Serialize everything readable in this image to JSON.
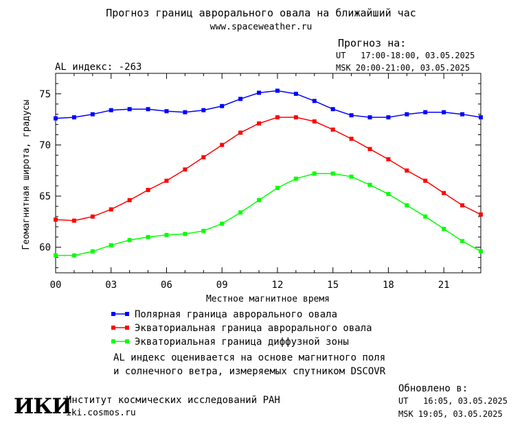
{
  "header": {
    "title": "Прогноз границ аврорального овала на ближайший час",
    "site": "www.spaceweather.ru",
    "forecast_label": "Прогноз на:",
    "forecast_ut": "UT   17:00-18:00, 03.05.2025",
    "forecast_msk": "MSK 20:00-21:00, 03.05.2025",
    "al_index": "AL индекс: -263"
  },
  "chart_data": {
    "type": "line",
    "xlabel": "Местное магнитное время",
    "ylabel": "Геомагнитная широта, градусы",
    "xlim": [
      0,
      23
    ],
    "ylim": [
      57.5,
      77
    ],
    "x_ticks": [
      "00",
      "03",
      "06",
      "09",
      "12",
      "15",
      "18",
      "21"
    ],
    "y_ticks": [
      "60",
      "65",
      "70",
      "75"
    ],
    "x": [
      0,
      1,
      2,
      3,
      4,
      5,
      6,
      7,
      8,
      9,
      10,
      11,
      12,
      13,
      14,
      15,
      16,
      17,
      18,
      19,
      20,
      21,
      22,
      23
    ],
    "series": [
      {
        "name": "Полярная граница аврорального овала",
        "color": "#0000ff",
        "values": [
          72.6,
          72.7,
          73.0,
          73.4,
          73.5,
          73.5,
          73.3,
          73.2,
          73.4,
          73.8,
          74.5,
          75.1,
          75.3,
          75.0,
          74.3,
          73.5,
          72.9,
          72.7,
          72.7,
          73.0,
          73.2,
          73.2,
          73.0,
          72.7
        ]
      },
      {
        "name": "Экваториальная граница аврорального овала",
        "color": "#ff0000",
        "values": [
          62.7,
          62.6,
          63.0,
          63.7,
          64.6,
          65.6,
          66.5,
          67.6,
          68.8,
          70.0,
          71.2,
          72.1,
          72.7,
          72.7,
          72.3,
          71.5,
          70.6,
          69.6,
          68.6,
          67.5,
          66.5,
          65.3,
          64.1,
          63.2
        ]
      },
      {
        "name": "Экваториальная граница диффузной зоны",
        "color": "#00ff00",
        "values": [
          59.2,
          59.2,
          59.6,
          60.2,
          60.7,
          61.0,
          61.2,
          61.3,
          61.6,
          62.3,
          63.4,
          64.6,
          65.8,
          66.7,
          67.2,
          67.2,
          66.9,
          66.1,
          65.2,
          64.1,
          63.0,
          61.8,
          60.6,
          59.6
        ]
      }
    ]
  },
  "notes": {
    "line1": "AL индекс оценивается на основе магнитного поля",
    "line2": "и солнечного ветра, измеряемых спутником DSCOVR"
  },
  "footer": {
    "logo": "ИКИ",
    "institute": "Институт космических исследований РАН",
    "url": "iki.cosmos.ru",
    "updated_label": "Обновлено в:",
    "updated_ut": "UT   16:05, 03.05.2025",
    "updated_msk": "MSK 19:05, 03.05.2025"
  }
}
